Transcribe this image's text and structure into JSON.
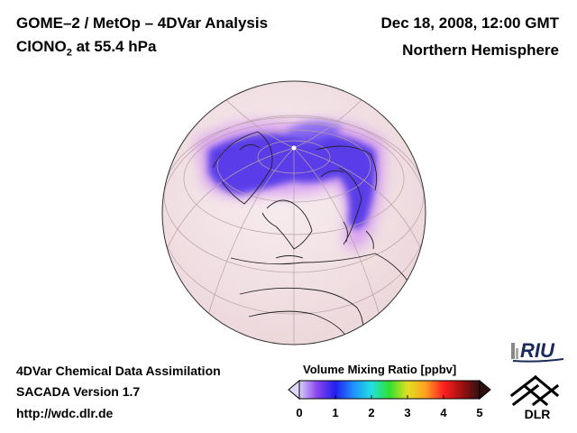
{
  "header": {
    "title": "GOME–2 / MetOp – 4DVar Analysis",
    "species": "ClONO",
    "species_sub": "2",
    "level": " at 55.4 hPa",
    "date": "Dec 18, 2008, 12:00 GMT",
    "region": "Northern Hemisphere"
  },
  "footer": {
    "line1": "4DVar Chemical Data Assimilation",
    "line2": "SACADA Version 1.7",
    "line3": "http://wdc.dlr.de"
  },
  "colorbar": {
    "title": "Volume Mixing Ratio [ppbv]",
    "ticks": [
      "0",
      "1",
      "2",
      "3",
      "4",
      "5"
    ],
    "range": [
      0,
      5
    ],
    "colors": [
      "#d8d0f8",
      "#8844ee",
      "#2020ee",
      "#2090ff",
      "#20e0e0",
      "#30e030",
      "#e0e020",
      "#ffa020",
      "#ff2020",
      "#a01010",
      "#301010"
    ]
  },
  "map": {
    "projection": "orthographic",
    "center": "North Pole / Europe",
    "background_color": "#f3e2e6",
    "feature": "ClONO2 maximum around polar vortex"
  },
  "logos": {
    "riu": "RIU",
    "dlr": "DLR"
  }
}
